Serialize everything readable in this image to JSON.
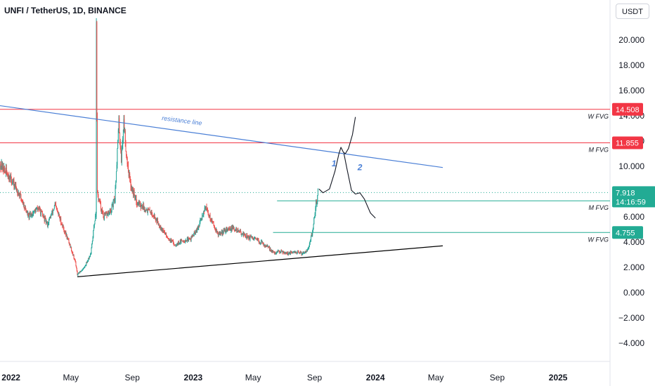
{
  "header": {
    "title": "UNFI / TetherUS, 1D, BINANCE",
    "currency_button": "USDT"
  },
  "colors": {
    "up": "#26a69a",
    "down": "#ef5350",
    "resistance": "#4a7fd6",
    "fvg_red": "#f23645",
    "fvg_green": "#22ab94",
    "support": "#000000",
    "projection": "#131722"
  },
  "chart_data": {
    "type": "candlestick",
    "y_axis": {
      "ticks": [
        20,
        18,
        16,
        14,
        12,
        10,
        8,
        6,
        4,
        2,
        0,
        -2,
        -4
      ],
      "tick_labels": [
        "20.000",
        "18.000",
        "16.000",
        "14.000",
        "12.000",
        "10.000",
        "8.000",
        "6.000",
        "4.000",
        "2.000",
        "0.000",
        "−2.000",
        "−4.000"
      ],
      "range": [
        -4.9,
        21.5
      ]
    },
    "x_axis": {
      "ticks": [
        {
          "date": "2022-01-01",
          "label": "2022",
          "bold": true
        },
        {
          "date": "2022-05-01",
          "label": "May",
          "bold": false
        },
        {
          "date": "2022-09-01",
          "label": "Sep",
          "bold": false
        },
        {
          "date": "2023-01-01",
          "label": "2023",
          "bold": true
        },
        {
          "date": "2023-05-01",
          "label": "May",
          "bold": false
        },
        {
          "date": "2023-09-01",
          "label": "Sep",
          "bold": false
        },
        {
          "date": "2024-01-01",
          "label": "2024",
          "bold": true
        },
        {
          "date": "2024-05-01",
          "label": "May",
          "bold": false
        },
        {
          "date": "2024-09-01",
          "label": "Sep",
          "bold": false
        },
        {
          "date": "2025-01-01",
          "label": "2025",
          "bold": true
        }
      ]
    },
    "price_path": [
      [
        "2021-12-10",
        10.2
      ],
      [
        "2022-01-01",
        9.0
      ],
      [
        "2022-01-20",
        7.6
      ],
      [
        "2022-02-05",
        6.0
      ],
      [
        "2022-02-25",
        6.7
      ],
      [
        "2022-03-15",
        5.4
      ],
      [
        "2022-03-30",
        6.9
      ],
      [
        "2022-04-15",
        5.2
      ],
      [
        "2022-04-28",
        3.9
      ],
      [
        "2022-05-10",
        2.4
      ],
      [
        "2022-05-14",
        1.4
      ],
      [
        "2022-05-28",
        2.0
      ],
      [
        "2022-06-10",
        3.1
      ],
      [
        "2022-06-20",
        6.5
      ],
      [
        "2022-06-21",
        21.0
      ],
      [
        "2022-06-23",
        7.8
      ],
      [
        "2022-07-05",
        6.0
      ],
      [
        "2022-07-20",
        6.4
      ],
      [
        "2022-07-28",
        7.5
      ],
      [
        "2022-08-05",
        13.4
      ],
      [
        "2022-08-10",
        10.6
      ],
      [
        "2022-08-15",
        13.6
      ],
      [
        "2022-08-20",
        11.0
      ],
      [
        "2022-08-28",
        8.6
      ],
      [
        "2022-09-10",
        7.2
      ],
      [
        "2022-09-25",
        6.7
      ],
      [
        "2022-10-10",
        6.3
      ],
      [
        "2022-10-25",
        5.4
      ],
      [
        "2022-11-10",
        4.4
      ],
      [
        "2022-11-25",
        3.8
      ],
      [
        "2022-12-10",
        4.1
      ],
      [
        "2022-12-25",
        4.2
      ],
      [
        "2023-01-10",
        5.0
      ],
      [
        "2023-01-25",
        6.8
      ],
      [
        "2023-02-08",
        5.6
      ],
      [
        "2023-02-20",
        4.6
      ],
      [
        "2023-03-05",
        4.9
      ],
      [
        "2023-03-20",
        5.1
      ],
      [
        "2023-04-05",
        4.8
      ],
      [
        "2023-04-20",
        4.4
      ],
      [
        "2023-05-05",
        4.2
      ],
      [
        "2023-05-20",
        3.9
      ],
      [
        "2023-06-05",
        3.4
      ],
      [
        "2023-06-12",
        3.1
      ],
      [
        "2023-06-25",
        3.3
      ],
      [
        "2023-07-10",
        3.1
      ],
      [
        "2023-07-25",
        3.2
      ],
      [
        "2023-08-08",
        3.1
      ],
      [
        "2023-08-20",
        3.5
      ],
      [
        "2023-08-28",
        4.8
      ],
      [
        "2023-09-04",
        7.0
      ],
      [
        "2023-09-08",
        7.9
      ]
    ],
    "visible_range": {
      "start_date": "2021-12-10",
      "end_date": "2025-04-15"
    },
    "resistance_line": {
      "label": "resistance line",
      "start": [
        "2021-12-10",
        14.8
      ],
      "end": [
        "2024-05-15",
        9.9
      ]
    },
    "support_line": {
      "start": [
        "2022-05-14",
        1.25
      ],
      "end": [
        "2024-05-15",
        3.7
      ]
    },
    "horizontal_levels": [
      {
        "name": "W FVG",
        "price": 14.508,
        "label": "14.508",
        "color": "red",
        "start": "2021-12-10",
        "end": "2025-04-15"
      },
      {
        "name": "M FVG",
        "price": 11.855,
        "label": "11.855",
        "color": "red",
        "start": "2021-12-10",
        "end": "2025-04-15"
      },
      {
        "name": "M FVG",
        "price": 7.265,
        "label": "7.265",
        "color": "green",
        "start": "2023-06-18",
        "end": "2025-04-15"
      },
      {
        "name": "W FVG",
        "price": 4.755,
        "label": "4.755",
        "color": "green",
        "start": "2023-06-10",
        "end": "2025-04-15"
      }
    ],
    "current_price": {
      "value": 7.918,
      "label": "7.918",
      "countdown": "14:16:59"
    },
    "projection_path": [
      [
        "2023-09-10",
        8.2
      ],
      [
        "2023-09-18",
        7.9
      ],
      [
        "2023-10-01",
        8.2
      ],
      [
        "2023-10-12",
        9.6
      ],
      [
        "2023-10-20",
        11.0
      ],
      [
        "2023-10-24",
        11.5
      ],
      [
        "2023-10-29",
        11.1
      ],
      [
        "2023-11-02",
        11.0
      ],
      [
        "2023-11-08",
        11.4
      ],
      [
        "2023-11-16",
        12.5
      ],
      [
        "2023-11-22",
        13.9
      ]
    ],
    "projection_path_2": [
      [
        "2023-10-30",
        11.0
      ],
      [
        "2023-11-05",
        9.8
      ],
      [
        "2023-11-14",
        8.1
      ],
      [
        "2023-11-22",
        7.8
      ],
      [
        "2023-12-01",
        7.9
      ],
      [
        "2023-12-10",
        7.4
      ],
      [
        "2023-12-22",
        6.3
      ],
      [
        "2024-01-01",
        5.9
      ]
    ],
    "wave_labels": [
      {
        "label": "1",
        "date": "2023-10-10",
        "price": 10.0
      },
      {
        "label": "2",
        "date": "2023-12-01",
        "price": 9.7
      }
    ]
  }
}
